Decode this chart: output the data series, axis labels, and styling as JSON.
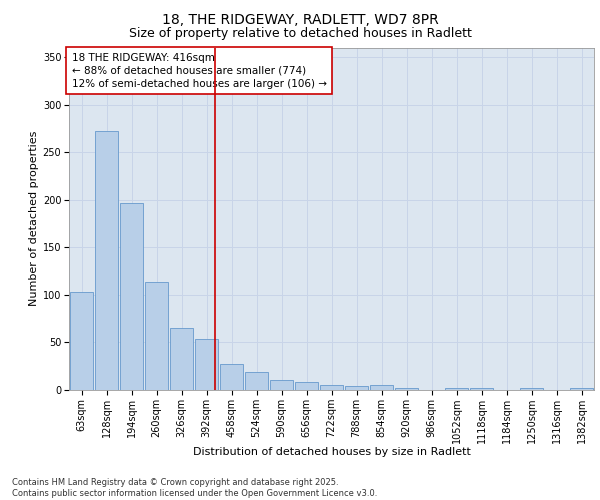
{
  "title_line1": "18, THE RIDGEWAY, RADLETT, WD7 8PR",
  "title_line2": "Size of property relative to detached houses in Radlett",
  "xlabel": "Distribution of detached houses by size in Radlett",
  "ylabel": "Number of detached properties",
  "categories": [
    "63sqm",
    "128sqm",
    "194sqm",
    "260sqm",
    "326sqm",
    "392sqm",
    "458sqm",
    "524sqm",
    "590sqm",
    "656sqm",
    "722sqm",
    "788sqm",
    "854sqm",
    "920sqm",
    "986sqm",
    "1052sqm",
    "1118sqm",
    "1184sqm",
    "1250sqm",
    "1316sqm",
    "1382sqm"
  ],
  "values": [
    103,
    272,
    197,
    114,
    65,
    54,
    27,
    19,
    10,
    8,
    5,
    4,
    5,
    2,
    0,
    2,
    2,
    0,
    2,
    0,
    2
  ],
  "bar_color": "#b8cfe8",
  "bar_edge_color": "#6699cc",
  "bar_linewidth": 0.6,
  "vline_color": "#cc0000",
  "vline_linewidth": 1.2,
  "annotation_box_text": "18 THE RIDGEWAY: 416sqm\n← 88% of detached houses are smaller (774)\n12% of semi-detached houses are larger (106) →",
  "annotation_fontsize": 7.5,
  "annotation_box_color": "#cc0000",
  "ylim": [
    0,
    360
  ],
  "yticks": [
    0,
    50,
    100,
    150,
    200,
    250,
    300,
    350
  ],
  "grid_color": "#c8d4e8",
  "background_color": "#dce6f0",
  "title_fontsize": 10,
  "subtitle_fontsize": 9,
  "axis_label_fontsize": 8,
  "tick_fontsize": 7,
  "footer_text": "Contains HM Land Registry data © Crown copyright and database right 2025.\nContains public sector information licensed under the Open Government Licence v3.0."
}
